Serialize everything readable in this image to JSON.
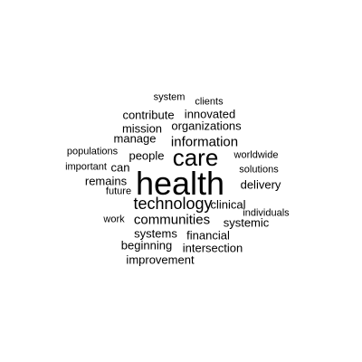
{
  "word_cloud": {
    "words": {
      "system": "system",
      "clients": "clients",
      "contribute": "contribute",
      "innovated": "innovated",
      "mission": "mission",
      "organizations": "organizations",
      "manage": "manage",
      "information": "information",
      "populations": "populations",
      "people": "people",
      "care": "care",
      "worldwide": "worldwide",
      "important": "important",
      "can": "can",
      "solutions": "solutions",
      "remains": "remains",
      "health": "health",
      "delivery": "delivery",
      "future": "future",
      "technology": "technology",
      "clinical": "clinical",
      "individuals": "individuals",
      "work": "work",
      "communities": "communities",
      "systemic": "systemic",
      "systems": "systems",
      "financial": "financial",
      "beginning": "beginning",
      "intersection": "intersection",
      "improvement": "improvement"
    },
    "text_color": "#000000",
    "background_color": "#ffffff"
  }
}
